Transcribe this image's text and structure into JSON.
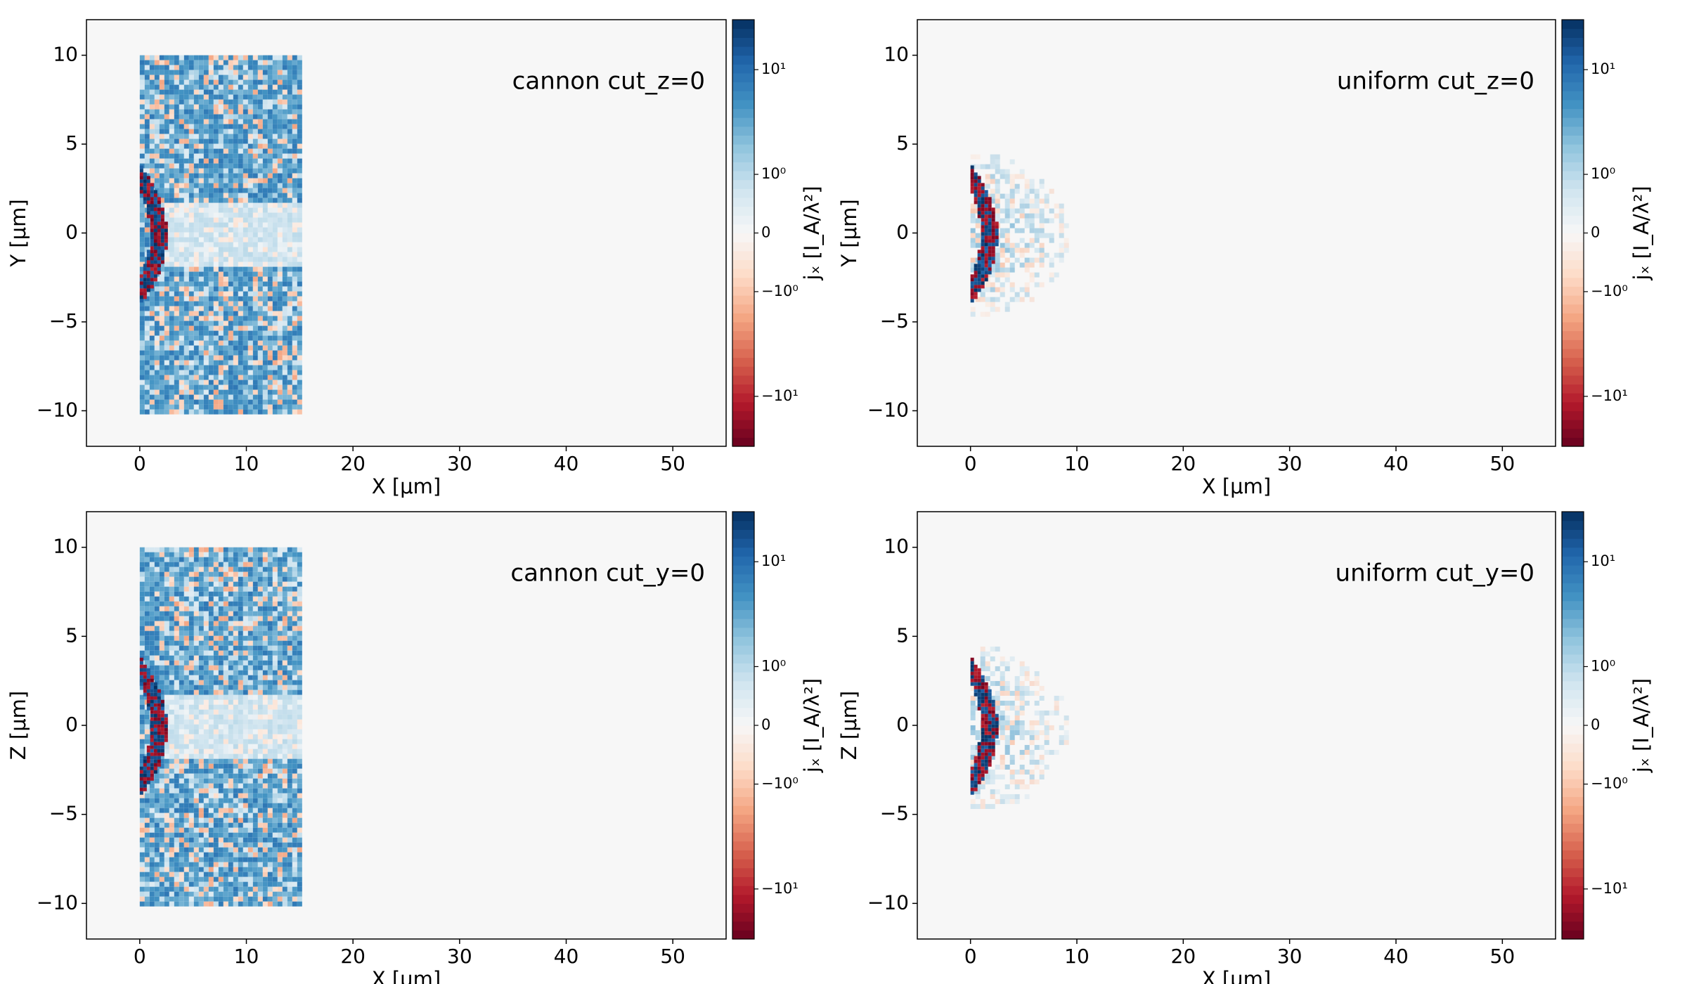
{
  "chart_data": [
    {
      "type": "heatmap",
      "title": "cannon cut_z=0",
      "xlabel": "X  [μm]",
      "ylabel": "Y  [μm]",
      "xlim": [
        -5,
        55
      ],
      "xticks": [
        0,
        10,
        20,
        30,
        40,
        50
      ],
      "ylim": [
        -12,
        12
      ],
      "yticks": [
        {
          "value": -10,
          "label": "−10"
        },
        {
          "value": -5,
          "label": "−5"
        },
        0,
        5,
        10
      ],
      "target": {
        "x": [
          0,
          15
        ],
        "y": [
          -10,
          10
        ]
      },
      "colorbar": {
        "label": "jₓ  [I_A/λ²]",
        "clim": [
          -30,
          30
        ],
        "linthresh": 1,
        "linscale": 0.56,
        "ticks": [
          {
            "value": 10,
            "label": "10¹"
          },
          {
            "value": 1,
            "label": "10⁰"
          },
          0,
          {
            "value": -1,
            "label": "−10⁰"
          },
          {
            "value": -10,
            "label": "−10¹"
          }
        ]
      }
    },
    {
      "type": "heatmap",
      "title": "uniform cut_z=0",
      "xlabel": "X  [μm]",
      "ylabel": "Y  [μm]",
      "xlim": [
        -5,
        55
      ],
      "xticks": [
        0,
        10,
        20,
        30,
        40,
        50
      ],
      "ylim": [
        -12,
        12
      ],
      "yticks": [
        {
          "value": -10,
          "label": "−10"
        },
        {
          "value": -5,
          "label": "−5"
        },
        0,
        5,
        10
      ],
      "plume": {
        "x": [
          0,
          9
        ],
        "y": [
          -4.7,
          4.7
        ]
      },
      "colorbar": {
        "label": "jₓ  [I_A/λ²]",
        "clim": [
          -30,
          30
        ],
        "linthresh": 1,
        "linscale": 0.56,
        "ticks": [
          {
            "value": 10,
            "label": "10¹"
          },
          {
            "value": 1,
            "label": "10⁰"
          },
          0,
          {
            "value": -1,
            "label": "−10⁰"
          },
          {
            "value": -10,
            "label": "−10¹"
          }
        ]
      }
    },
    {
      "type": "heatmap",
      "title": "cannon cut_y=0",
      "xlabel": "X  [μm]",
      "ylabel": "Z  [μm]",
      "xlim": [
        -5,
        55
      ],
      "xticks": [
        0,
        10,
        20,
        30,
        40,
        50
      ],
      "ylim": [
        -12,
        12
      ],
      "yticks": [
        {
          "value": -10,
          "label": "−10"
        },
        {
          "value": -5,
          "label": "−5"
        },
        0,
        5,
        10
      ],
      "target": {
        "x": [
          0,
          15
        ],
        "y": [
          -10,
          10
        ]
      },
      "colorbar": {
        "label": "jₓ  [I_A/λ²]",
        "clim": [
          -30,
          30
        ],
        "linthresh": 1,
        "linscale": 0.56,
        "ticks": [
          {
            "value": 10,
            "label": "10¹"
          },
          {
            "value": 1,
            "label": "10⁰"
          },
          0,
          {
            "value": -1,
            "label": "−10⁰"
          },
          {
            "value": -10,
            "label": "−10¹"
          }
        ]
      }
    },
    {
      "type": "heatmap",
      "title": "uniform cut_y=0",
      "xlabel": "X  [μm]",
      "ylabel": "Z  [μm]",
      "xlim": [
        -5,
        55
      ],
      "xticks": [
        0,
        10,
        20,
        30,
        40,
        50
      ],
      "ylim": [
        -12,
        12
      ],
      "yticks": [
        {
          "value": -10,
          "label": "−10"
        },
        {
          "value": -5,
          "label": "−5"
        },
        0,
        5,
        10
      ],
      "plume": {
        "x": [
          0,
          9
        ],
        "y": [
          -4.7,
          4.7
        ]
      },
      "colorbar": {
        "label": "jₓ  [I_A/λ²]",
        "clim": [
          -30,
          30
        ],
        "linthresh": 1,
        "linscale": 0.56,
        "ticks": [
          {
            "value": 10,
            "label": "10¹"
          },
          {
            "value": 1,
            "label": "10⁰"
          },
          0,
          {
            "value": -1,
            "label": "−10⁰"
          },
          {
            "value": -10,
            "label": "−10¹"
          }
        ]
      }
    }
  ]
}
